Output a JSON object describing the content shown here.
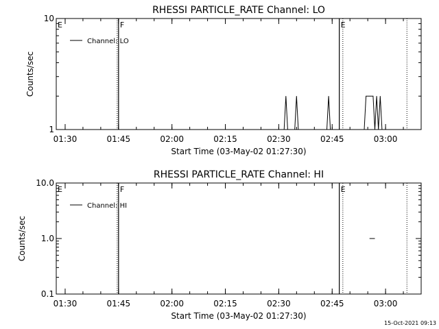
{
  "chart_data": [
    {
      "type": "line",
      "title": "RHESSI PARTICLE_RATE Channel: LO",
      "xlabel": "Start Time (03-May-02 01:27:30)",
      "ylabel": "Counts/sec",
      "yscale": "log",
      "xlim": [
        "01:27:30",
        "03:10:00"
      ],
      "ylim": [
        1,
        10
      ],
      "xticks": [
        "01:30",
        "01:45",
        "02:00",
        "02:15",
        "02:30",
        "02:45",
        "03:00"
      ],
      "yticks": [
        "1",
        "10"
      ],
      "legend": {
        "entries": [
          "Channel: LO"
        ],
        "position": "top-left"
      },
      "series": [
        {
          "name": "Channel: LO",
          "points": [
            [
              "02:31:30",
              1
            ],
            [
              "02:32:00",
              2
            ],
            [
              "02:32:30",
              1
            ],
            [
              "02:34:30",
              1
            ],
            [
              "02:35:00",
              2
            ],
            [
              "02:35:30",
              1
            ],
            [
              "02:43:30",
              1
            ],
            [
              "02:44:00",
              2
            ],
            [
              "02:44:30",
              1
            ],
            [
              "02:54:00",
              1
            ],
            [
              "02:54:30",
              2
            ],
            [
              "02:56:30",
              2
            ],
            [
              "02:57:00",
              1
            ],
            [
              "02:57:30",
              2
            ],
            [
              "02:58:00",
              1
            ],
            [
              "02:58:30",
              2
            ],
            [
              "02:59:00",
              1
            ]
          ]
        }
      ],
      "markers": [
        {
          "label": "E",
          "time": "01:27:30",
          "style": "solid"
        },
        {
          "label": "F",
          "time": "01:45:00",
          "style": "solid"
        },
        {
          "label": "E",
          "time": "02:47:00",
          "style": "solid"
        },
        {
          "label": "",
          "time": "02:48:00",
          "style": "dotted"
        },
        {
          "label": "",
          "time": "03:06:00",
          "style": "dotted"
        }
      ]
    },
    {
      "type": "line",
      "title": "RHESSI PARTICLE_RATE Channel: HI",
      "xlabel": "Start Time (03-May-02 01:27:30)",
      "ylabel": "Counts/sec",
      "yscale": "log",
      "xlim": [
        "01:27:30",
        "03:10:00"
      ],
      "ylim": [
        0.1,
        10
      ],
      "xticks": [
        "01:30",
        "01:45",
        "02:00",
        "02:15",
        "02:30",
        "02:45",
        "03:00"
      ],
      "yticks": [
        "0.1",
        "1.0",
        "10.0"
      ],
      "legend": {
        "entries": [
          "Channel: HI"
        ],
        "position": "top-left"
      },
      "series": [
        {
          "name": "Channel: HI",
          "points": [
            [
              "02:55:30",
              1
            ],
            [
              "02:57:00",
              1
            ]
          ]
        }
      ],
      "markers": [
        {
          "label": "E",
          "time": "01:27:30",
          "style": "solid"
        },
        {
          "label": "F",
          "time": "01:45:00",
          "style": "solid"
        },
        {
          "label": "E",
          "time": "02:47:00",
          "style": "solid"
        },
        {
          "label": "",
          "time": "02:48:00",
          "style": "dotted"
        },
        {
          "label": "",
          "time": "03:06:00",
          "style": "dotted"
        }
      ]
    }
  ],
  "footer": {
    "timestamp": "15-Oct-2021 09:13"
  }
}
